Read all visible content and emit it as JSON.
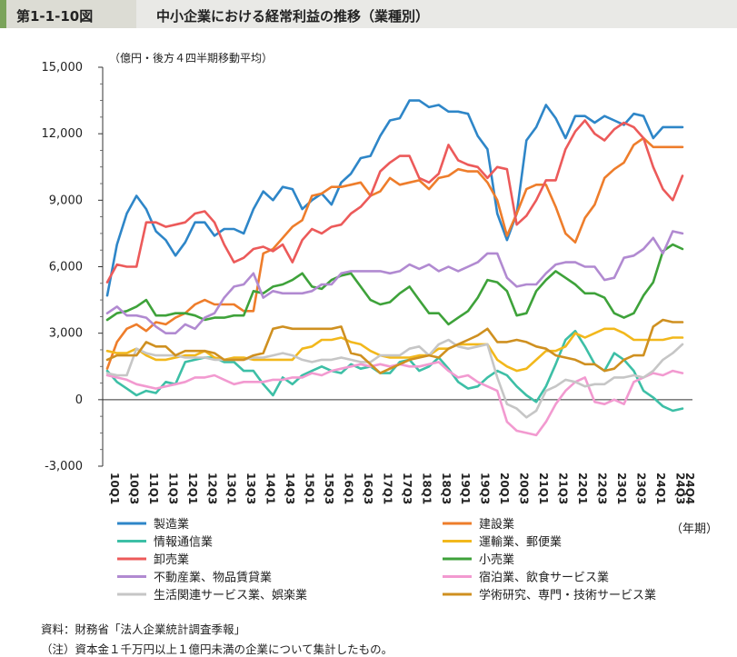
{
  "header": {
    "figure_number": "第1-1-10図",
    "title": "中小企業における経常利益の推移（業種別）"
  },
  "footer": {
    "source": "資料：財務省「法人企業統計調査季報」",
    "note": "（注）資本金１千万円以上１億円未満の企業について集計したもの。"
  },
  "chart_data": {
    "type": "line",
    "ylabel": "（億円・後方４四半期移動平均）",
    "xlabel": "（年期）",
    "ylim": [
      -3000,
      15000
    ],
    "y_ticks": [
      -3000,
      0,
      3000,
      6000,
      9000,
      12000,
      15000
    ],
    "y_tick_labels": [
      "-3,000",
      "0",
      "3,000",
      "6,000",
      "9,000",
      "12,000",
      "15,000"
    ],
    "x_tick_labels": [
      "10Q1",
      "10Q3",
      "11Q1",
      "11Q3",
      "12Q1",
      "12Q3",
      "13Q1",
      "13Q3",
      "14Q1",
      "14Q3",
      "15Q1",
      "15Q3",
      "16Q1",
      "16Q3",
      "17Q1",
      "17Q3",
      "18Q1",
      "18Q3",
      "19Q1",
      "19Q3",
      "20Q1",
      "20Q3",
      "21Q1",
      "21Q3",
      "22Q1",
      "22Q3",
      "23Q1",
      "23Q3",
      "24Q1",
      "24Q3",
      "24Q4"
    ],
    "x": [
      "10Q1",
      "10Q2",
      "10Q3",
      "10Q4",
      "11Q1",
      "11Q2",
      "11Q3",
      "11Q4",
      "12Q1",
      "12Q2",
      "12Q3",
      "12Q4",
      "13Q1",
      "13Q2",
      "13Q3",
      "13Q4",
      "14Q1",
      "14Q2",
      "14Q3",
      "14Q4",
      "15Q1",
      "15Q2",
      "15Q3",
      "15Q4",
      "16Q1",
      "16Q2",
      "16Q3",
      "16Q4",
      "17Q1",
      "17Q2",
      "17Q3",
      "17Q4",
      "18Q1",
      "18Q2",
      "18Q3",
      "18Q4",
      "19Q1",
      "19Q2",
      "19Q3",
      "19Q4",
      "20Q1",
      "20Q2",
      "20Q3",
      "20Q4",
      "21Q1",
      "21Q2",
      "21Q3",
      "21Q4",
      "22Q1",
      "22Q2",
      "22Q3",
      "22Q4",
      "23Q1",
      "23Q2",
      "23Q3",
      "23Q4",
      "24Q1",
      "24Q2",
      "24Q3",
      "24Q4"
    ],
    "grid": false,
    "legend_position": "bottom",
    "series": [
      {
        "name": "製造業",
        "color": "#2e86c8",
        "values": [
          4700,
          7000,
          8400,
          9200,
          8600,
          7600,
          7200,
          6500,
          7100,
          8000,
          8000,
          7400,
          7700,
          7700,
          7500,
          8600,
          9400,
          9000,
          9600,
          9500,
          8600,
          9000,
          9300,
          8800,
          9800,
          10200,
          10900,
          11000,
          11900,
          12600,
          12700,
          13500,
          13500,
          13200,
          13300,
          13000,
          13000,
          12900,
          11900,
          11300,
          8400,
          7200,
          8400,
          11700,
          12300,
          13300,
          12700,
          11800,
          12800,
          12800,
          12500,
          12800,
          12600,
          12400,
          12900,
          12800,
          11800,
          12300,
          12300,
          12300
        ]
      },
      {
        "name": "建設業",
        "color": "#ee7d2b",
        "values": [
          1400,
          2600,
          3200,
          3400,
          3100,
          3500,
          3400,
          3700,
          3900,
          4300,
          4500,
          4300,
          4300,
          4300,
          4000,
          4000,
          6600,
          6800,
          7300,
          7800,
          8100,
          9200,
          9300,
          9600,
          9600,
          9700,
          9800,
          9200,
          9400,
          10000,
          9700,
          9800,
          9900,
          9500,
          10000,
          10100,
          10400,
          10300,
          10300,
          9800,
          9000,
          7400,
          8400,
          9500,
          9700,
          9700,
          8700,
          7500,
          7100,
          8200,
          8800,
          10000,
          10400,
          10700,
          11500,
          11800,
          11400,
          11400,
          11400,
          11400
        ]
      },
      {
        "name": "情報通信業",
        "color": "#3dbfa6",
        "values": [
          1300,
          800,
          500,
          200,
          400,
          300,
          800,
          700,
          1700,
          1800,
          1900,
          1900,
          1700,
          1700,
          1300,
          1300,
          700,
          200,
          1000,
          700,
          1100,
          1300,
          1500,
          1300,
          1200,
          1600,
          1400,
          1500,
          1200,
          1200,
          1700,
          1800,
          1300,
          1500,
          1900,
          1400,
          800,
          500,
          600,
          1000,
          1300,
          1100,
          600,
          200,
          -100,
          600,
          1600,
          2700,
          3100,
          2400,
          1600,
          1300,
          2100,
          1800,
          1300,
          400,
          100,
          -300,
          -500,
          -400
        ]
      },
      {
        "name": "運輸業、郵便業",
        "color": "#f2b81c",
        "values": [
          2200,
          2100,
          2100,
          2300,
          2000,
          1800,
          1800,
          1900,
          2000,
          2000,
          2200,
          1900,
          1800,
          1900,
          1900,
          1800,
          1800,
          1800,
          1800,
          1800,
          2300,
          2400,
          2700,
          2700,
          2800,
          2600,
          2500,
          2200,
          2000,
          1900,
          1900,
          1900,
          2000,
          2000,
          2300,
          2300,
          2500,
          2500,
          2500,
          2500,
          1800,
          1500,
          1300,
          1400,
          1800,
          2200,
          2200,
          2400,
          3000,
          2800,
          3000,
          3200,
          3200,
          3000,
          2700,
          2700,
          2700,
          2700,
          2800,
          2800
        ]
      },
      {
        "name": "卸売業",
        "color": "#ec5a5a",
        "values": [
          5300,
          6100,
          6000,
          6000,
          8000,
          8000,
          7800,
          7900,
          8000,
          8400,
          8500,
          8000,
          7000,
          6200,
          6400,
          6800,
          6900,
          6700,
          7000,
          6200,
          7200,
          7700,
          7500,
          7800,
          7900,
          8400,
          8700,
          9200,
          10300,
          10700,
          11000,
          11000,
          10000,
          9800,
          10200,
          11500,
          10800,
          10600,
          10500,
          10000,
          10500,
          10400,
          7900,
          8300,
          9000,
          9900,
          9900,
          11300,
          12100,
          12600,
          12000,
          11700,
          12200,
          12500,
          12300,
          11800,
          10500,
          9500,
          9000,
          10100
        ]
      },
      {
        "name": "小売業",
        "color": "#3ea23a",
        "values": [
          3600,
          3900,
          4000,
          4200,
          4500,
          3800,
          3800,
          3900,
          3900,
          3800,
          3600,
          3700,
          3700,
          3800,
          3800,
          4900,
          4800,
          5100,
          5200,
          5400,
          5700,
          5100,
          5000,
          5400,
          5600,
          5700,
          5100,
          4500,
          4300,
          4400,
          4800,
          5100,
          4500,
          3900,
          3900,
          3400,
          3700,
          4000,
          4600,
          5400,
          5300,
          4900,
          3800,
          3900,
          4900,
          5400,
          5800,
          5500,
          5200,
          4800,
          4800,
          4600,
          3900,
          3700,
          3900,
          4700,
          5300,
          6700,
          7000,
          6800
        ]
      },
      {
        "name": "不動産業、物品賃貸業",
        "color": "#b18ad1",
        "values": [
          3900,
          4200,
          3800,
          3800,
          3700,
          3300,
          3000,
          3000,
          3400,
          3200,
          3700,
          3900,
          4600,
          5100,
          5200,
          5700,
          4600,
          4900,
          4800,
          4800,
          4800,
          4900,
          5200,
          5200,
          5700,
          5800,
          5800,
          5800,
          5800,
          5700,
          5800,
          6100,
          5900,
          6100,
          5800,
          6000,
          5800,
          6000,
          6200,
          6600,
          6600,
          5500,
          5100,
          5200,
          5200,
          5700,
          6100,
          6200,
          6200,
          6000,
          6000,
          5400,
          5500,
          6400,
          6500,
          6800,
          7300,
          6600,
          7600,
          7500
        ]
      },
      {
        "name": "宿泊業、飲食サービス業",
        "color": "#f29ad0",
        "values": [
          1100,
          1000,
          900,
          700,
          600,
          500,
          600,
          700,
          800,
          1000,
          1000,
          1100,
          900,
          700,
          800,
          800,
          800,
          900,
          900,
          1000,
          1000,
          1200,
          1100,
          1300,
          1400,
          1500,
          1600,
          1500,
          1600,
          1500,
          1600,
          1500,
          1500,
          1600,
          1700,
          1300,
          1000,
          1100,
          800,
          600,
          400,
          -1000,
          -1400,
          -1500,
          -1600,
          -1000,
          -200,
          400,
          800,
          1000,
          -100,
          -200,
          0,
          -200,
          800,
          1000,
          1200,
          1100,
          1300,
          1200
        ]
      },
      {
        "name": "生活関連サービス業、娯楽業",
        "color": "#c6c6c6",
        "values": [
          1200,
          1100,
          1100,
          2300,
          2100,
          2000,
          2000,
          2000,
          1900,
          1900,
          1900,
          1800,
          1800,
          1800,
          1800,
          1900,
          1900,
          2000,
          2100,
          2000,
          1800,
          1700,
          1800,
          1800,
          1900,
          1800,
          1700,
          1700,
          2000,
          2000,
          2000,
          2300,
          2400,
          2000,
          2500,
          2700,
          2400,
          2300,
          2400,
          2500,
          1000,
          -200,
          -400,
          -800,
          -500,
          400,
          600,
          900,
          800,
          600,
          700,
          700,
          1000,
          1000,
          1100,
          1000,
          1300,
          1800,
          2100,
          2500
        ]
      },
      {
        "name": "学術研究、専門・技術サービス業",
        "color": "#cf9020",
        "values": [
          1800,
          2000,
          2000,
          2000,
          2600,
          2400,
          2400,
          2000,
          2200,
          2200,
          2200,
          2100,
          1800,
          1800,
          1800,
          2000,
          2100,
          3200,
          3300,
          3200,
          3200,
          3200,
          3200,
          3200,
          3300,
          2100,
          2000,
          1600,
          1200,
          1400,
          1600,
          1800,
          1900,
          2000,
          1900,
          2300,
          2500,
          2700,
          2900,
          3200,
          2600,
          2600,
          2700,
          2600,
          2400,
          2300,
          2000,
          1900,
          1800,
          1600,
          1600,
          1300,
          1400,
          1800,
          2000,
          2000,
          3300,
          3600,
          3500,
          3500
        ]
      }
    ]
  }
}
